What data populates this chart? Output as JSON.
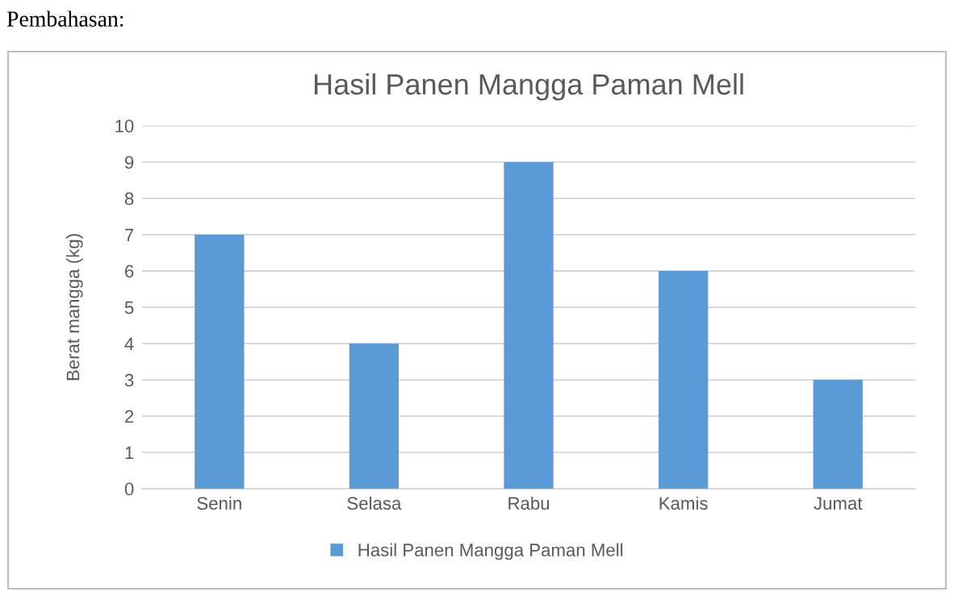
{
  "chart_data": {
    "type": "bar",
    "title": "Hasil Panen Mangga Paman Mell",
    "ylabel": "Berat mangga (kg)",
    "categories": [
      "Senin",
      "Selasa",
      "Rabu",
      "Kamis",
      "Jumat"
    ],
    "series": [
      {
        "name": "Hasil Panen Mangga Paman Mell",
        "color": "#5b9bd5",
        "values": [
          7,
          4,
          9,
          6,
          3
        ]
      }
    ],
    "ylim": [
      0,
      10
    ],
    "yticks": [
      0,
      1,
      2,
      3,
      4,
      5,
      6,
      7,
      8,
      9,
      10
    ],
    "grid": "y",
    "legend": "bottom",
    "annotations": [
      "Pembahasan:"
    ]
  }
}
